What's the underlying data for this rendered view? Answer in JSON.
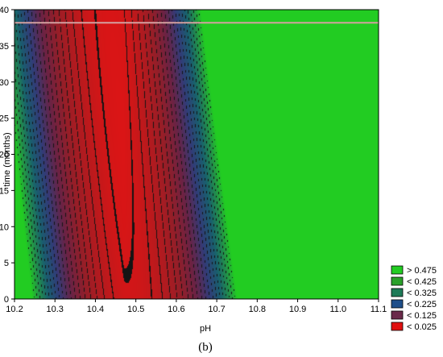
{
  "chart_data": {
    "type": "heatmap",
    "subtype": "contour",
    "xlabel": "pH",
    "ylabel": "time (months)",
    "xlim": [
      10.2,
      11.1
    ],
    "ylim": [
      0,
      40
    ],
    "x_ticks": [
      "10.2",
      "10.3",
      "10.4",
      "10.5",
      "10.6",
      "10.7",
      "10.8",
      "10.9",
      "11.0",
      "11.1"
    ],
    "y_ticks": [
      "0",
      "5",
      "10",
      "15",
      "20",
      "25",
      "30",
      "35",
      "40"
    ],
    "caption": "(b)",
    "legend": {
      "position": "bottom-right",
      "entries": [
        {
          "label": "> 0.475",
          "color": "#22cc22"
        },
        {
          "label": "< 0.425",
          "color": "#2aa02a"
        },
        {
          "label": "< 0.325",
          "color": "#1e7a58"
        },
        {
          "label": "< 0.225",
          "color": "#1f4f8a"
        },
        {
          "label": "< 0.125",
          "color": "#6a2a4a"
        },
        {
          "label": "< 0.025",
          "color": "#e01010"
        }
      ]
    },
    "minimum": {
      "x": 10.47,
      "y": 22
    },
    "contour_step": 0.025
  }
}
